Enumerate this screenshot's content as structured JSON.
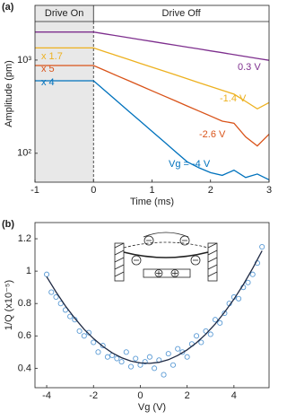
{
  "chart_data": [
    {
      "type": "line",
      "panel_label": "(a)",
      "x_label": "Time (ms)",
      "y_label": "Amplitude (pm)",
      "log_y": true,
      "xlim": [
        -1,
        3
      ],
      "ylim": [
        49,
        3860
      ],
      "xticks": [
        -1,
        0,
        1,
        2,
        3
      ],
      "yticks": [
        {
          "value": 100,
          "label": "10²"
        },
        {
          "value": 1000,
          "label": "10³"
        }
      ],
      "shaded_xrange": [
        -1,
        0
      ],
      "shade_color": "#e8e8e8",
      "annotations": [
        "Drive On",
        "Drive Off"
      ],
      "x": [
        -1,
        -0.8,
        -0.6,
        -0.4,
        -0.2,
        0,
        0.2,
        0.4,
        0.6,
        0.8,
        1,
        1.2,
        1.4,
        1.6,
        1.8,
        2,
        2.2,
        2.4,
        2.6,
        2.8,
        3
      ],
      "series": [
        {
          "name": "0.3 V",
          "color": "#7e2f8e",
          "values": [
            2000,
            2000,
            2000,
            2000,
            2000,
            2000,
            1909,
            1822,
            1739,
            1660,
            1585,
            1513,
            1444,
            1378,
            1316,
            1256,
            1199,
            1144,
            1092,
            1042,
            995
          ]
        },
        {
          "name": "-1.4 V",
          "scale": "x 1.7",
          "color": "#edb120",
          "values": [
            1350,
            1350,
            1350,
            1350,
            1350,
            1350,
            1227,
            1116,
            1015,
            923,
            839,
            763,
            694,
            631,
            573,
            521,
            474,
            431,
            360,
            300,
            350
          ]
        },
        {
          "name": "-2.6 V",
          "scale": "x 5",
          "color": "#d95319",
          "values": [
            875,
            875,
            875,
            875,
            875,
            875,
            772,
            681,
            601,
            531,
            468,
            413,
            365,
            322,
            284,
            251,
            221,
            210,
            150,
            120,
            160
          ]
        },
        {
          "name": "Vg = -4 V",
          "scale": "x 4",
          "color": "#0072bd",
          "values": [
            600,
            600,
            600,
            600,
            600,
            600,
            467,
            364,
            283,
            221,
            172,
            134,
            104,
            81,
            70,
            62,
            58,
            66,
            55,
            60,
            52
          ]
        }
      ]
    },
    {
      "type": "scatter",
      "panel_label": "(b)",
      "x_label": "Vg (V)",
      "y_label": "1/Q (x10⁻⁵)",
      "xlim": [
        -4.5,
        5.5
      ],
      "ylim": [
        0.28,
        1.3
      ],
      "xticks": [
        -4,
        -2,
        0,
        2,
        4
      ],
      "yticks": [
        0.4,
        0.6,
        0.8,
        1,
        1.2
      ],
      "color": "#5b9bd5",
      "x": [
        -4,
        -3.8,
        -3.6,
        -3.4,
        -3.2,
        -3,
        -2.8,
        -2.6,
        -2.4,
        -2.2,
        -2,
        -1.8,
        -1.6,
        -1.4,
        -1.2,
        -1,
        -0.8,
        -0.6,
        -0.4,
        -0.2,
        0,
        0.2,
        0.4,
        0.6,
        0.8,
        1,
        1.2,
        1.4,
        1.6,
        1.8,
        2,
        2.2,
        2.4,
        2.6,
        2.8,
        3,
        3.2,
        3.4,
        3.6,
        3.8,
        4,
        4.2,
        4.4,
        4.6,
        4.8,
        5,
        5.2
      ],
      "values": [
        0.98,
        0.87,
        0.84,
        0.8,
        0.76,
        0.72,
        0.7,
        0.63,
        0.6,
        0.62,
        0.56,
        0.5,
        0.54,
        0.47,
        0.48,
        0.46,
        0.44,
        0.5,
        0.41,
        0.46,
        0.42,
        0.44,
        0.47,
        0.4,
        0.45,
        0.36,
        0.49,
        0.42,
        0.52,
        0.5,
        0.47,
        0.55,
        0.6,
        0.56,
        0.63,
        0.61,
        0.7,
        0.68,
        0.74,
        0.8,
        0.84,
        0.83,
        0.9,
        0.93,
        0.98,
        1.05,
        1.15
      ],
      "fit": {
        "color": "#1f2a44",
        "x": [
          -4,
          -3.6,
          -3.2,
          -2.8,
          -2.4,
          -2,
          -1.6,
          -1.2,
          -0.8,
          -0.4,
          0,
          0.4,
          0.8,
          1.2,
          1.6,
          2,
          2.4,
          2.8,
          3.2,
          3.6,
          4,
          4.4,
          4.8,
          5.2
        ],
        "values": [
          0.966,
          0.871,
          0.785,
          0.709,
          0.641,
          0.583,
          0.535,
          0.495,
          0.465,
          0.444,
          0.433,
          0.43,
          0.437,
          0.453,
          0.479,
          0.514,
          0.558,
          0.611,
          0.674,
          0.746,
          0.827,
          0.917,
          1.017,
          1.126
        ]
      }
    }
  ]
}
